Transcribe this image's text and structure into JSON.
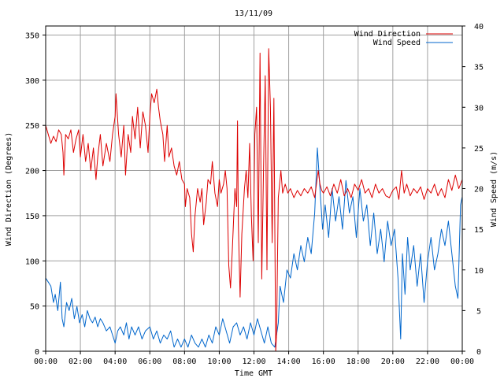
{
  "chart_data": {
    "type": "line",
    "title": "13/11/09",
    "xlabel": "Time GMT",
    "ylabel_left": "Wind Direction (Degrees)",
    "ylabel_right": "Wind Speed (m/s)",
    "x_ticks": [
      "00:00",
      "02:00",
      "04:00",
      "06:00",
      "08:00",
      "10:00",
      "12:00",
      "14:00",
      "16:00",
      "18:00",
      "20:00",
      "22:00",
      "00:00"
    ],
    "x_range_hours": [
      0,
      24
    ],
    "y_left_ticks": [
      0,
      50,
      100,
      150,
      200,
      250,
      300,
      350
    ],
    "y_left_range": [
      0,
      360
    ],
    "y_right_ticks": [
      0,
      5,
      10,
      15,
      20,
      25,
      30,
      35,
      40
    ],
    "y_right_range": [
      0,
      40
    ],
    "grid": true,
    "legend_position": "top-right",
    "series": [
      {
        "name": "Wind Direction",
        "axis": "left",
        "color": "#dd0000",
        "points": [
          [
            0.0,
            250
          ],
          [
            0.15,
            240
          ],
          [
            0.3,
            230
          ],
          [
            0.45,
            238
          ],
          [
            0.6,
            232
          ],
          [
            0.75,
            245
          ],
          [
            0.9,
            240
          ],
          [
            1.0,
            220
          ],
          [
            1.05,
            195
          ],
          [
            1.15,
            240
          ],
          [
            1.3,
            235
          ],
          [
            1.45,
            245
          ],
          [
            1.6,
            220
          ],
          [
            1.75,
            235
          ],
          [
            1.9,
            245
          ],
          [
            2.0,
            215
          ],
          [
            2.15,
            240
          ],
          [
            2.3,
            210
          ],
          [
            2.45,
            230
          ],
          [
            2.6,
            200
          ],
          [
            2.75,
            225
          ],
          [
            2.9,
            190
          ],
          [
            3.0,
            215
          ],
          [
            3.15,
            240
          ],
          [
            3.3,
            205
          ],
          [
            3.5,
            230
          ],
          [
            3.7,
            210
          ],
          [
            3.85,
            240
          ],
          [
            4.0,
            260
          ],
          [
            4.05,
            285
          ],
          [
            4.2,
            240
          ],
          [
            4.35,
            215
          ],
          [
            4.5,
            250
          ],
          [
            4.6,
            195
          ],
          [
            4.75,
            240
          ],
          [
            4.9,
            220
          ],
          [
            5.0,
            260
          ],
          [
            5.15,
            235
          ],
          [
            5.3,
            270
          ],
          [
            5.45,
            225
          ],
          [
            5.6,
            265
          ],
          [
            5.75,
            250
          ],
          [
            5.9,
            220
          ],
          [
            6.0,
            260
          ],
          [
            6.1,
            285
          ],
          [
            6.25,
            275
          ],
          [
            6.4,
            290
          ],
          [
            6.5,
            270
          ],
          [
            6.6,
            255
          ],
          [
            6.75,
            240
          ],
          [
            6.85,
            210
          ],
          [
            7.0,
            250
          ],
          [
            7.1,
            215
          ],
          [
            7.25,
            225
          ],
          [
            7.4,
            205
          ],
          [
            7.55,
            195
          ],
          [
            7.7,
            210
          ],
          [
            7.85,
            190
          ],
          [
            8.0,
            185
          ],
          [
            8.05,
            160
          ],
          [
            8.15,
            180
          ],
          [
            8.3,
            170
          ],
          [
            8.4,
            130
          ],
          [
            8.5,
            110
          ],
          [
            8.6,
            150
          ],
          [
            8.75,
            180
          ],
          [
            8.9,
            165
          ],
          [
            9.0,
            180
          ],
          [
            9.1,
            140
          ],
          [
            9.25,
            165
          ],
          [
            9.35,
            190
          ],
          [
            9.5,
            185
          ],
          [
            9.6,
            210
          ],
          [
            9.75,
            175
          ],
          [
            9.9,
            160
          ],
          [
            10.0,
            190
          ],
          [
            10.1,
            175
          ],
          [
            10.25,
            185
          ],
          [
            10.35,
            200
          ],
          [
            10.45,
            180
          ],
          [
            10.55,
            95
          ],
          [
            10.65,
            70
          ],
          [
            10.75,
            110
          ],
          [
            10.9,
            180
          ],
          [
            11.0,
            160
          ],
          [
            11.05,
            255
          ],
          [
            11.1,
            140
          ],
          [
            11.2,
            60
          ],
          [
            11.3,
            130
          ],
          [
            11.45,
            180
          ],
          [
            11.55,
            200
          ],
          [
            11.65,
            170
          ],
          [
            11.75,
            230
          ],
          [
            11.85,
            150
          ],
          [
            11.95,
            100
          ],
          [
            12.05,
            240
          ],
          [
            12.15,
            270
          ],
          [
            12.25,
            120
          ],
          [
            12.35,
            330
          ],
          [
            12.45,
            80
          ],
          [
            12.55,
            200
          ],
          [
            12.65,
            305
          ],
          [
            12.75,
            90
          ],
          [
            12.85,
            335
          ],
          [
            12.95,
            270
          ],
          [
            13.05,
            120
          ],
          [
            13.15,
            280
          ],
          [
            13.25,
            0
          ],
          [
            13.3,
            20
          ],
          [
            13.4,
            170
          ],
          [
            13.55,
            200
          ],
          [
            13.65,
            175
          ],
          [
            13.8,
            185
          ],
          [
            13.95,
            175
          ],
          [
            14.1,
            180
          ],
          [
            14.3,
            170
          ],
          [
            14.5,
            178
          ],
          [
            14.7,
            172
          ],
          [
            14.9,
            180
          ],
          [
            15.1,
            175
          ],
          [
            15.3,
            182
          ],
          [
            15.5,
            170
          ],
          [
            15.7,
            200
          ],
          [
            15.8,
            185
          ],
          [
            15.9,
            178
          ],
          [
            16.0,
            175
          ],
          [
            16.2,
            182
          ],
          [
            16.4,
            172
          ],
          [
            16.6,
            185
          ],
          [
            16.8,
            175
          ],
          [
            17.0,
            190
          ],
          [
            17.2,
            172
          ],
          [
            17.4,
            180
          ],
          [
            17.6,
            170
          ],
          [
            17.8,
            185
          ],
          [
            18.0,
            178
          ],
          [
            18.2,
            190
          ],
          [
            18.4,
            175
          ],
          [
            18.6,
            180
          ],
          [
            18.8,
            170
          ],
          [
            19.0,
            185
          ],
          [
            19.2,
            175
          ],
          [
            19.4,
            180
          ],
          [
            19.6,
            172
          ],
          [
            19.8,
            170
          ],
          [
            20.0,
            178
          ],
          [
            20.2,
            182
          ],
          [
            20.35,
            168
          ],
          [
            20.5,
            200
          ],
          [
            20.65,
            175
          ],
          [
            20.8,
            185
          ],
          [
            21.0,
            172
          ],
          [
            21.2,
            180
          ],
          [
            21.4,
            175
          ],
          [
            21.6,
            182
          ],
          [
            21.8,
            168
          ],
          [
            22.0,
            180
          ],
          [
            22.2,
            175
          ],
          [
            22.4,
            185
          ],
          [
            22.6,
            172
          ],
          [
            22.8,
            180
          ],
          [
            23.0,
            170
          ],
          [
            23.2,
            190
          ],
          [
            23.4,
            178
          ],
          [
            23.6,
            195
          ],
          [
            23.8,
            180
          ],
          [
            24.0,
            190
          ]
        ]
      },
      {
        "name": "Wind Speed",
        "axis": "right",
        "color": "#0066cc",
        "points": [
          [
            0.0,
            9
          ],
          [
            0.15,
            8.5
          ],
          [
            0.3,
            8
          ],
          [
            0.45,
            6
          ],
          [
            0.55,
            7
          ],
          [
            0.7,
            5
          ],
          [
            0.85,
            8.5
          ],
          [
            0.95,
            4
          ],
          [
            1.05,
            3
          ],
          [
            1.2,
            6
          ],
          [
            1.35,
            5
          ],
          [
            1.5,
            6.5
          ],
          [
            1.65,
            4
          ],
          [
            1.8,
            5.5
          ],
          [
            1.95,
            3.5
          ],
          [
            2.1,
            4.5
          ],
          [
            2.25,
            3
          ],
          [
            2.4,
            5
          ],
          [
            2.55,
            4
          ],
          [
            2.7,
            3.5
          ],
          [
            2.85,
            4.2
          ],
          [
            3.0,
            3
          ],
          [
            3.15,
            4
          ],
          [
            3.3,
            3.5
          ],
          [
            3.5,
            2.5
          ],
          [
            3.7,
            3
          ],
          [
            3.85,
            2
          ],
          [
            4.0,
            1
          ],
          [
            4.15,
            2.5
          ],
          [
            4.3,
            3
          ],
          [
            4.5,
            2
          ],
          [
            4.65,
            3.5
          ],
          [
            4.8,
            1.5
          ],
          [
            4.95,
            3
          ],
          [
            5.15,
            2
          ],
          [
            5.35,
            3
          ],
          [
            5.55,
            1.5
          ],
          [
            5.75,
            2.5
          ],
          [
            6.0,
            3
          ],
          [
            6.2,
            1.5
          ],
          [
            6.4,
            2.5
          ],
          [
            6.6,
            1
          ],
          [
            6.8,
            2
          ],
          [
            7.0,
            1.5
          ],
          [
            7.2,
            2.5
          ],
          [
            7.4,
            0.5
          ],
          [
            7.6,
            1.5
          ],
          [
            7.8,
            0.5
          ],
          [
            8.0,
            1.5
          ],
          [
            8.2,
            0.5
          ],
          [
            8.4,
            2
          ],
          [
            8.6,
            1
          ],
          [
            8.8,
            0.5
          ],
          [
            9.0,
            1.5
          ],
          [
            9.2,
            0.5
          ],
          [
            9.4,
            2
          ],
          [
            9.6,
            1
          ],
          [
            9.8,
            3
          ],
          [
            10.0,
            2
          ],
          [
            10.2,
            4
          ],
          [
            10.4,
            2.5
          ],
          [
            10.6,
            1
          ],
          [
            10.8,
            3
          ],
          [
            11.0,
            3.5
          ],
          [
            11.2,
            2
          ],
          [
            11.4,
            3
          ],
          [
            11.6,
            1.5
          ],
          [
            11.8,
            3.5
          ],
          [
            12.0,
            2
          ],
          [
            12.2,
            4
          ],
          [
            12.4,
            2.5
          ],
          [
            12.6,
            1
          ],
          [
            12.8,
            3
          ],
          [
            13.0,
            1
          ],
          [
            13.2,
            0.5
          ],
          [
            13.4,
            3.5
          ],
          [
            13.5,
            8
          ],
          [
            13.7,
            6
          ],
          [
            13.9,
            10
          ],
          [
            14.1,
            9
          ],
          [
            14.3,
            12
          ],
          [
            14.5,
            10
          ],
          [
            14.7,
            13
          ],
          [
            14.9,
            11
          ],
          [
            15.1,
            14
          ],
          [
            15.3,
            12
          ],
          [
            15.5,
            17
          ],
          [
            15.65,
            25
          ],
          [
            15.8,
            20
          ],
          [
            15.95,
            15
          ],
          [
            16.1,
            18
          ],
          [
            16.3,
            14
          ],
          [
            16.5,
            20
          ],
          [
            16.7,
            16
          ],
          [
            16.9,
            19
          ],
          [
            17.1,
            15
          ],
          [
            17.3,
            21
          ],
          [
            17.5,
            17
          ],
          [
            17.7,
            19
          ],
          [
            17.9,
            14
          ],
          [
            18.1,
            20
          ],
          [
            18.3,
            16
          ],
          [
            18.5,
            18
          ],
          [
            18.7,
            13
          ],
          [
            18.9,
            17
          ],
          [
            19.1,
            12
          ],
          [
            19.3,
            15
          ],
          [
            19.5,
            11
          ],
          [
            19.7,
            16
          ],
          [
            19.9,
            13
          ],
          [
            20.1,
            15
          ],
          [
            20.3,
            9
          ],
          [
            20.45,
            1.5
          ],
          [
            20.55,
            12
          ],
          [
            20.7,
            7
          ],
          [
            20.85,
            14
          ],
          [
            21.0,
            10
          ],
          [
            21.2,
            13
          ],
          [
            21.4,
            8
          ],
          [
            21.6,
            12
          ],
          [
            21.8,
            6
          ],
          [
            22.0,
            11
          ],
          [
            22.2,
            14
          ],
          [
            22.4,
            10
          ],
          [
            22.6,
            12
          ],
          [
            22.8,
            15
          ],
          [
            23.0,
            13
          ],
          [
            23.2,
            16
          ],
          [
            23.4,
            12
          ],
          [
            23.6,
            8
          ],
          [
            23.75,
            6.5
          ],
          [
            23.9,
            18
          ],
          [
            24.0,
            19
          ]
        ]
      }
    ]
  }
}
